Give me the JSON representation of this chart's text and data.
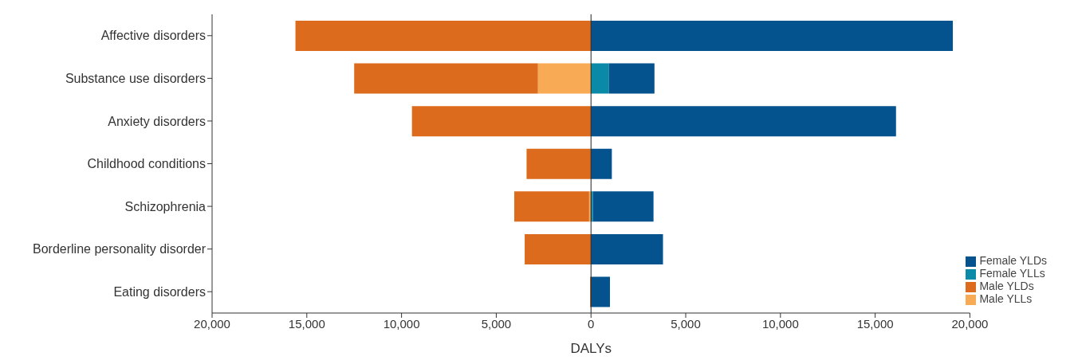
{
  "chart_data": {
    "type": "bar",
    "orientation": "horizontal",
    "stacked": true,
    "xlabel": "DALYs",
    "categories": [
      "Affective disorders",
      "Substance use disorders",
      "Anxiety disorders",
      "Childhood conditions",
      "Schizophrenia",
      "Borderline personality disorder",
      "Eating disorders"
    ],
    "series": [
      {
        "name": "Male YLLs",
        "color": "#f9aa55",
        "values": [
          0,
          -2800,
          0,
          0,
          -100,
          0,
          0
        ]
      },
      {
        "name": "Male YLDs",
        "color": "#dc6b1e",
        "values": [
          -15600,
          -9700,
          -9450,
          -3400,
          -3950,
          -3500,
          -50
        ]
      },
      {
        "name": "Female YLLs",
        "color": "#0a8aa6",
        "values": [
          0,
          950,
          0,
          0,
          100,
          0,
          0
        ]
      },
      {
        "name": "Female YLDs",
        "color": "#04538f",
        "values": [
          19100,
          2400,
          16100,
          1100,
          3200,
          3800,
          1000
        ]
      }
    ],
    "xlim": [
      -20000,
      20000
    ],
    "xticks": [
      {
        "value": -20000,
        "label": "20,000"
      },
      {
        "value": -15000,
        "label": "15,000"
      },
      {
        "value": -10000,
        "label": "10,000"
      },
      {
        "value": -5000,
        "label": "5,000"
      },
      0,
      {
        "value": 5000,
        "label": "5,000"
      },
      {
        "value": 10000,
        "label": "10,000"
      },
      {
        "value": 15000,
        "label": "15,000"
      },
      {
        "value": 20000,
        "label": "20,000"
      }
    ],
    "ref_lines": [
      {
        "axis": "x",
        "value": 0,
        "color": "#222222"
      }
    ],
    "legend": "bottom right",
    "grid": false
  }
}
